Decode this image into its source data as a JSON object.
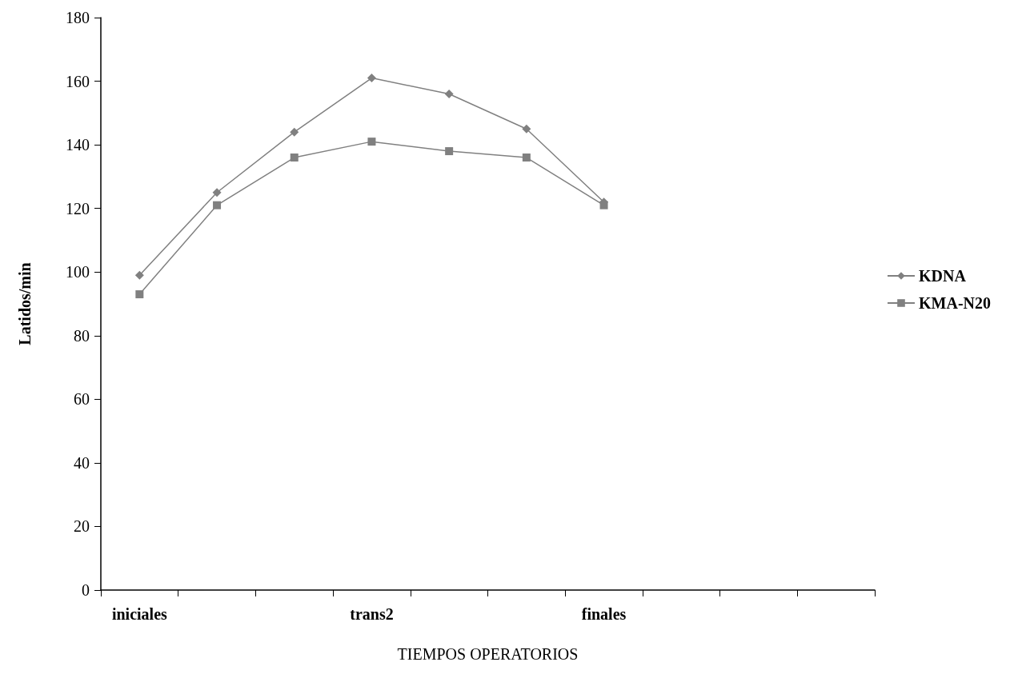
{
  "chart_data": {
    "type": "line",
    "xlabel": "TIEMPOS OPERATORIOS",
    "ylabel": "Latidos/min",
    "categories": [
      "iniciales",
      null,
      null,
      "trans2",
      null,
      null,
      "finales",
      null,
      null,
      null
    ],
    "series": [
      {
        "name": "KDNA",
        "color": "#808080",
        "marker": "diamond",
        "values": [
          99,
          125,
          144,
          161,
          156,
          145,
          122,
          null,
          null,
          null
        ]
      },
      {
        "name": "KMA-N20",
        "color": "#808080",
        "marker": "square",
        "values": [
          93,
          121,
          136,
          141,
          138,
          136,
          121,
          null,
          null,
          null
        ]
      }
    ],
    "ylim": [
      0,
      180
    ],
    "yticks": [
      0,
      20,
      40,
      60,
      80,
      100,
      120,
      140,
      160,
      180
    ],
    "grid": false,
    "legend": "right"
  }
}
